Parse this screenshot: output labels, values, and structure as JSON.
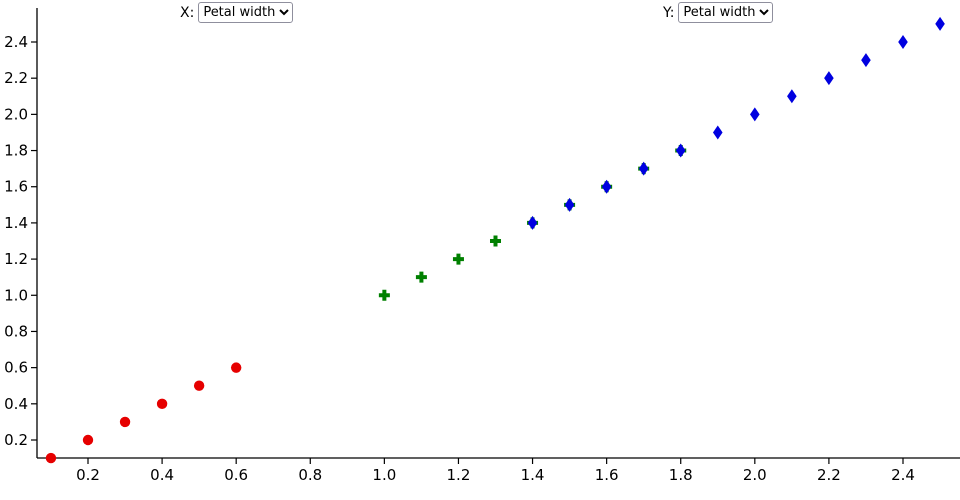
{
  "controls": {
    "x_label": "X:",
    "y_label": "Y:",
    "x_select_value": "Petal width",
    "y_select_value": "Petal width"
  },
  "chart_data": {
    "type": "scatter",
    "title": "",
    "xlabel": "",
    "ylabel": "",
    "x_axis": {
      "ticks": [
        0.2,
        0.4,
        0.6,
        0.8,
        1.0,
        1.2,
        1.4,
        1.6,
        1.8,
        2.0,
        2.2,
        2.4
      ],
      "range": [
        0.1,
        2.5
      ]
    },
    "y_axis": {
      "ticks": [
        0.2,
        0.4,
        0.6,
        0.8,
        1.0,
        1.2,
        1.4,
        1.6,
        1.8,
        2.0,
        2.2,
        2.4
      ],
      "range": [
        0.1,
        2.5
      ]
    },
    "grid": false,
    "legend": "none",
    "series": [
      {
        "name": "red-circles",
        "marker": "circle",
        "color": "#e60000",
        "points": [
          [
            0.1,
            0.1
          ],
          [
            0.2,
            0.2
          ],
          [
            0.3,
            0.3
          ],
          [
            0.4,
            0.4
          ],
          [
            0.5,
            0.5
          ],
          [
            0.6,
            0.6
          ]
        ]
      },
      {
        "name": "green-crosses",
        "marker": "plus",
        "color": "#008000",
        "points": [
          [
            1.0,
            1.0
          ],
          [
            1.1,
            1.1
          ],
          [
            1.2,
            1.2
          ],
          [
            1.3,
            1.3
          ],
          [
            1.4,
            1.4
          ],
          [
            1.5,
            1.5
          ],
          [
            1.6,
            1.6
          ],
          [
            1.7,
            1.7
          ],
          [
            1.8,
            1.8
          ]
        ]
      },
      {
        "name": "blue-diamonds",
        "marker": "diamond",
        "color": "#0000e0",
        "points": [
          [
            1.4,
            1.4
          ],
          [
            1.5,
            1.5
          ],
          [
            1.6,
            1.6
          ],
          [
            1.7,
            1.7
          ],
          [
            1.8,
            1.8
          ],
          [
            1.9,
            1.9
          ],
          [
            2.0,
            2.0
          ],
          [
            2.1,
            2.1
          ],
          [
            2.2,
            2.2
          ],
          [
            2.3,
            2.3
          ],
          [
            2.4,
            2.4
          ],
          [
            2.5,
            2.5
          ]
        ]
      }
    ]
  }
}
